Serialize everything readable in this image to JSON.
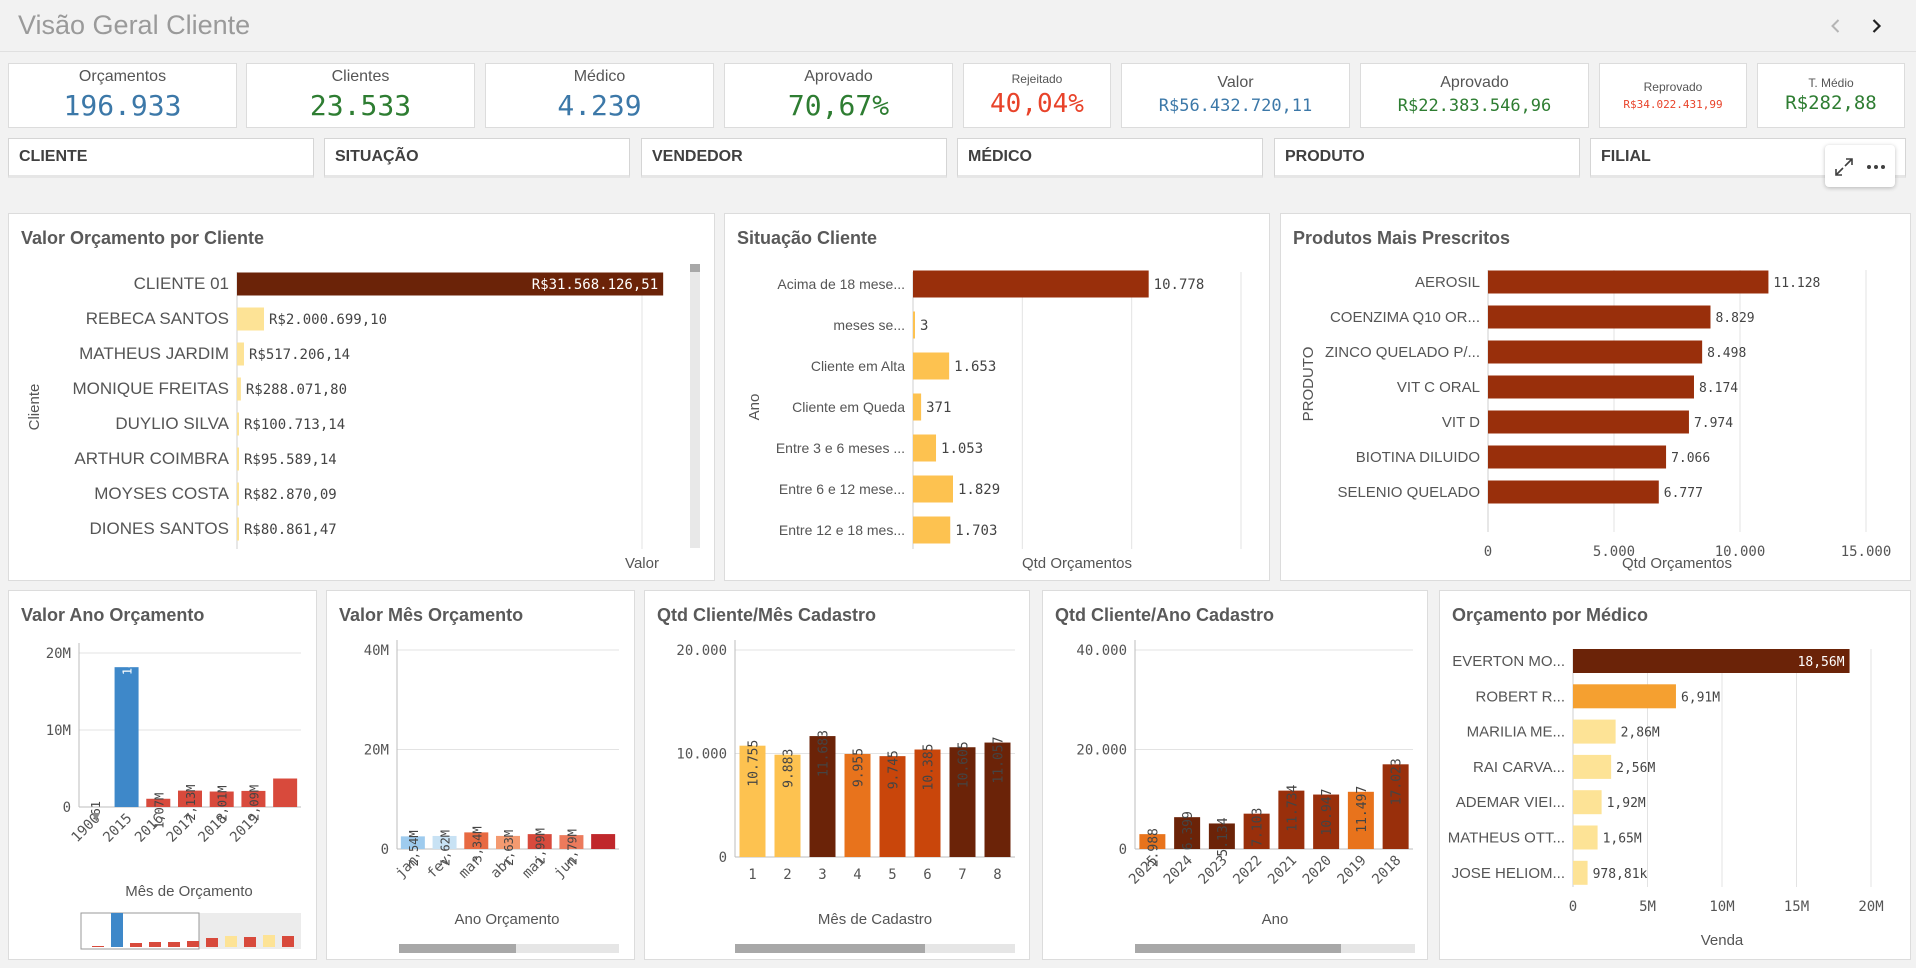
{
  "sheet": {
    "title": "Visão Geral Cliente"
  },
  "kpis": [
    {
      "label": "Orçamentos",
      "value": "196.933",
      "color": "#3c78a8"
    },
    {
      "label": "Clientes",
      "value": "23.533",
      "color": "#2e7d32"
    },
    {
      "label": "Médico",
      "value": "4.239",
      "color": "#3c78a8"
    },
    {
      "label": "Aprovado",
      "value": "70,67%",
      "color": "#2e7d32"
    },
    {
      "label": "Rejeitado",
      "value": "40,04%",
      "color": "#e8432a"
    },
    {
      "label": "Valor",
      "value": "R$56.432.720,11",
      "color": "#3c78a8"
    },
    {
      "label": "Aprovado",
      "value": "R$22.383.546,96",
      "color": "#2e7d32"
    },
    {
      "label": "Reprovado",
      "value": "R$34.022.431,99",
      "color": "#e8432a"
    },
    {
      "label": "T. Médio",
      "value": "R$282,88",
      "color": "#2e7d32"
    }
  ],
  "filters": [
    "CLIENTE",
    "SITUAÇÃO",
    "VENDEDOR",
    "MÉDICO",
    "PRODUTO",
    "FILIAL"
  ],
  "colors": {
    "dark_brown": "#6b2308",
    "rust": "#992f0b",
    "orange": "#e8731c",
    "burnt": "#c9460b",
    "yellow": "#fdc250",
    "light_yellow": "#fde396",
    "red": "#d84a3c",
    "blue": "#3e88c9",
    "light_blue": "#9ecbee"
  },
  "charts": {
    "valor_cliente": {
      "title": "Valor Orçamento por Cliente",
      "chart_data": {
        "type": "bar",
        "orientation": "horizontal",
        "title": "Valor Orçamento por Cliente",
        "xlabel": "Valor",
        "ylabel": "Cliente",
        "xlim": [
          0,
          60000000
        ],
        "categories": [
          "CLIENTE 01",
          "REBECA SANTOS",
          "MATHEUS JARDIM",
          "MONIQUE FREITAS",
          "DUYLIO SILVA",
          "ARTHUR COIMBRA",
          "MOYSES COSTA",
          "DIONES SANTOS"
        ],
        "values": [
          31568126.51,
          2000699.1,
          517206.14,
          288071.8,
          100713.14,
          95589.14,
          82870.09,
          80861.47
        ],
        "labels": [
          "R$31.568.126,51",
          "R$2.000.699,10",
          "R$517.206,14",
          "R$288.071,80",
          "R$100.713,14",
          "R$95.589,14",
          "R$82.870,09",
          "R$80.861,47"
        ]
      }
    },
    "situacao": {
      "title": "Situação Cliente",
      "chart_data": {
        "type": "bar",
        "orientation": "horizontal",
        "title": "Situação Cliente",
        "xlabel": "Qtd Orçamentos",
        "ylabel": "Ano",
        "xlim": [
          0,
          15000
        ],
        "categories": [
          "Acima de 18 mese...",
          "meses se...",
          "Cliente em Alta",
          "Cliente em Queda",
          "Entre 3 e 6 meses ...",
          "Entre 6 e 12 mese...",
          "Entre 12 e 18 mes..."
        ],
        "values": [
          10778,
          3,
          1653,
          371,
          1053,
          1829,
          1703
        ],
        "labels": [
          "10.778",
          "3",
          "1.653",
          "371",
          "1.053",
          "1.829",
          "1.703"
        ]
      }
    },
    "produtos": {
      "title": "Produtos Mais Prescritos",
      "chart_data": {
        "type": "bar",
        "orientation": "horizontal",
        "title": "Produtos Mais Prescritos",
        "xlabel": "Qtd Orçamentos",
        "ylabel": "PRODUTO",
        "xlim": [
          0,
          15000
        ],
        "xticks": [
          "0",
          "5.000",
          "10.000",
          "15.000"
        ],
        "categories": [
          "AEROSIL",
          "COENZIMA Q10 OR...",
          "ZINCO QUELADO P/...",
          "VIT C ORAL",
          "VIT D",
          "BIOTINA DILUIDO",
          "SELENIO QUELADO"
        ],
        "values": [
          11128,
          8829,
          8498,
          8174,
          7974,
          7066,
          6777
        ],
        "labels": [
          "11.128",
          "8.829",
          "8.498",
          "8.174",
          "7.974",
          "7.066",
          "6.777"
        ]
      }
    },
    "valor_ano": {
      "title": "Valor Ano Orçamento",
      "chart_data": {
        "type": "bar",
        "title": "Valor Ano Orçamento",
        "xlabel": "Mês de Orçamento",
        "ylim": [
          0,
          20000000
        ],
        "yticks": [
          "0",
          "10M",
          "20M"
        ],
        "categories": [
          "1900",
          "2015",
          "2016",
          "2017",
          "2018",
          "2019",
          ""
        ],
        "values": [
          -61,
          18160000,
          1070000,
          2130000,
          2010000,
          2090000,
          3700000
        ],
        "labels": [
          "-61",
          "18,16M",
          "1,07M",
          "2,13M",
          "2,01M",
          "2,09M",
          ""
        ]
      }
    },
    "valor_mes": {
      "title": "Valor Mês Orçamento",
      "chart_data": {
        "type": "bar",
        "title": "Valor Mês Orçamento",
        "xlabel": "Ano Orçamento",
        "ylim": [
          0,
          40000000
        ],
        "yticks": [
          "0",
          "20M",
          "40M"
        ],
        "categories": [
          "jan",
          "fev",
          "mar",
          "abr",
          "mai",
          "jun",
          ""
        ],
        "values": [
          2540000,
          2620000,
          3340000,
          2630000,
          2990000,
          2790000,
          3000000
        ],
        "labels": [
          "2,54M",
          "2,62M",
          "3,34M",
          "2,63M",
          "2,99M",
          "2,79M",
          ""
        ]
      }
    },
    "cliente_mes": {
      "title": "Qtd Cliente/Mês Cadastro",
      "chart_data": {
        "type": "bar",
        "title": "Qtd Cliente/Mês Cadastro",
        "xlabel": "Mês de Cadastro",
        "ylim": [
          0,
          20000
        ],
        "yticks": [
          "0",
          "10.000",
          "20.000"
        ],
        "categories": [
          "1",
          "2",
          "3",
          "4",
          "5",
          "6",
          "7",
          "8"
        ],
        "values": [
          10755,
          9883,
          11683,
          9955,
          9745,
          10385,
          10605,
          11057
        ],
        "labels": [
          "10.755",
          "9.883",
          "11.683",
          "9.955",
          "9.745",
          "10.385",
          "10.605",
          "11.057"
        ]
      }
    },
    "cliente_ano": {
      "title": "Qtd Cliente/Ano Cadastro",
      "chart_data": {
        "type": "bar",
        "title": "Qtd Cliente/Ano Cadastro",
        "xlabel": "Ano",
        "ylim": [
          0,
          40000
        ],
        "yticks": [
          "0",
          "20.000",
          "40.000"
        ],
        "categories": [
          "2025",
          "2024",
          "2023",
          "2022",
          "2021",
          "2020",
          "2019",
          "2018"
        ],
        "values": [
          2988,
          6399,
          5134,
          7103,
          11734,
          10947,
          11497,
          17023
        ],
        "labels": [
          "2.988",
          "6.399",
          "5.134",
          "7.103",
          "11.734",
          "10.947",
          "11.497",
          "17.023"
        ]
      }
    },
    "medico": {
      "title": "Orçamento por Médico",
      "chart_data": {
        "type": "bar",
        "orientation": "horizontal",
        "title": "Orçamento por Médico",
        "xlabel": "Venda",
        "xlim": [
          0,
          20000000
        ],
        "xticks": [
          "0",
          "5M",
          "10M",
          "15M",
          "20M"
        ],
        "categories": [
          "EVERTON MO...",
          "ROBERT R...",
          "MARILIA ME...",
          "RAI CARVA...",
          "ADEMAR VIEI...",
          "MATHEUS OTT...",
          "JOSE HELIOM..."
        ],
        "values": [
          18560000,
          6910000,
          2860000,
          2560000,
          1920000,
          1650000,
          978810
        ],
        "labels": [
          "18,56M",
          "6,91M",
          "2,86M",
          "2,56M",
          "1,92M",
          "1,65M",
          "978,81k"
        ]
      }
    }
  }
}
